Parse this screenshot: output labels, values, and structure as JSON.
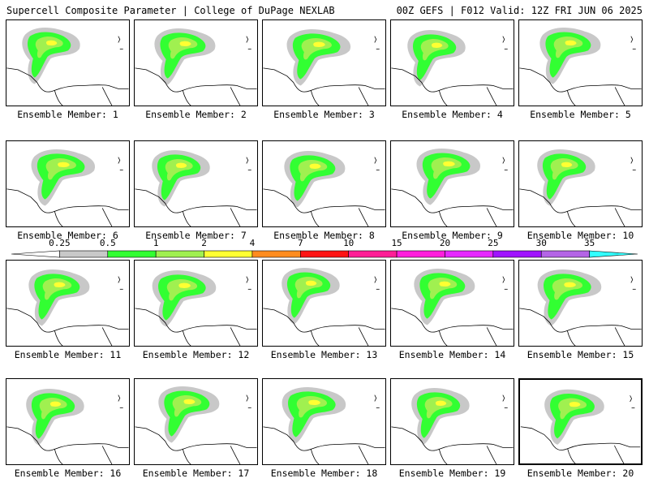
{
  "header": {
    "left": "Supercell Composite Parameter | College of DuPage NEXLAB",
    "right": "00Z GEFS | F012 Valid: 12Z FRI JUN 06 2025"
  },
  "members": [
    {
      "label": "Ensemble Member: 1"
    },
    {
      "label": "Ensemble Member: 2"
    },
    {
      "label": "Ensemble Member: 3"
    },
    {
      "label": "Ensemble Member: 4"
    },
    {
      "label": "Ensemble Member: 5"
    },
    {
      "label": "Ensemble Member: 6"
    },
    {
      "label": "Ensemble Member: 7"
    },
    {
      "label": "Ensemble Member: 8"
    },
    {
      "label": "Ensemble Member: 9"
    },
    {
      "label": "Ensemble Member: 10"
    },
    {
      "label": "Ensemble Member: 11"
    },
    {
      "label": "Ensemble Member: 12"
    },
    {
      "label": "Ensemble Member: 13"
    },
    {
      "label": "Ensemble Member: 14"
    },
    {
      "label": "Ensemble Member: 15"
    },
    {
      "label": "Ensemble Member: 16"
    },
    {
      "label": "Ensemble Member: 17"
    },
    {
      "label": "Ensemble Member: 18"
    },
    {
      "label": "Ensemble Member: 19"
    },
    {
      "label": "Ensemble Member: 20"
    }
  ],
  "selected_member": 20,
  "legend": {
    "labels": [
      "0.25",
      "0.5",
      "1",
      "2",
      "4",
      "7",
      "10",
      "15",
      "20",
      "25",
      "30",
      "35"
    ],
    "colors": [
      "#ffffff",
      "#c8c8c8",
      "#32ff32",
      "#a0f050",
      "#ffff32",
      "#ff8c1e",
      "#ff1414",
      "#ff1e96",
      "#ff1edc",
      "#e628ff",
      "#a014ff",
      "#b464e6",
      "#32ffff"
    ]
  }
}
